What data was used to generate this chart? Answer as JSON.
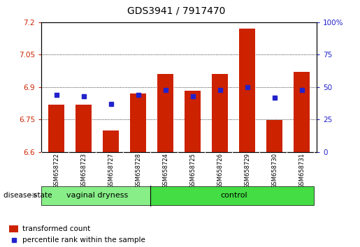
{
  "title": "GDS3941 / 7917470",
  "samples": [
    "GSM658722",
    "GSM658723",
    "GSM658727",
    "GSM658728",
    "GSM658724",
    "GSM658725",
    "GSM658726",
    "GSM658729",
    "GSM658730",
    "GSM658731"
  ],
  "red_values": [
    6.818,
    6.818,
    6.7,
    6.87,
    6.96,
    6.882,
    6.96,
    7.17,
    6.748,
    6.97
  ],
  "blue_percentile": [
    44,
    43,
    37,
    44,
    48,
    43,
    48,
    50,
    42,
    48
  ],
  "ylim_left": [
    6.6,
    7.2
  ],
  "yticks_left": [
    6.6,
    6.75,
    6.9,
    7.05,
    7.2
  ],
  "ytick_labels_left": [
    "6.6",
    "6.75",
    "6.9",
    "7.05",
    "7.2"
  ],
  "ylim_right": [
    0,
    100
  ],
  "yticks_right": [
    0,
    25,
    50,
    75,
    100
  ],
  "ytick_labels_right": [
    "0",
    "25",
    "50",
    "75",
    "100%"
  ],
  "groups": [
    {
      "label": "vaginal dryness",
      "start": 0,
      "end": 4,
      "color": "#88ee88"
    },
    {
      "label": "control",
      "start": 4,
      "end": 10,
      "color": "#44dd44"
    }
  ],
  "group_label": "disease state",
  "bar_color": "#cc2200",
  "blue_color": "#2222cc",
  "bar_bottom": 6.6,
  "bar_width": 0.6,
  "background_color": "#ffffff",
  "tick_area_color": "#bbbbbb",
  "legend_red_label": "transformed count",
  "legend_blue_label": "percentile rank within the sample"
}
